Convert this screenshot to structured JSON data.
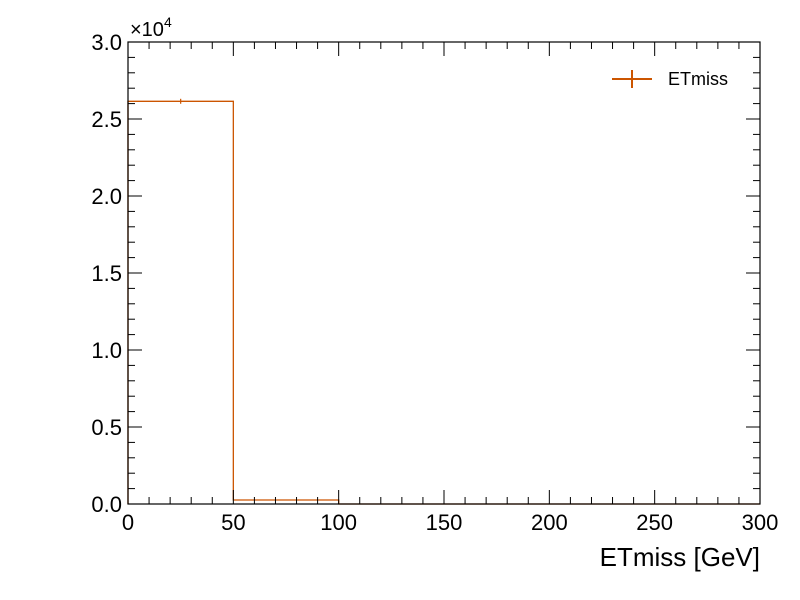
{
  "chart_data": {
    "type": "histogram",
    "xlabel": "ETmiss [GeV]",
    "ylabel": "",
    "xlim": [
      0,
      300
    ],
    "ylim": [
      0,
      30000
    ],
    "y_multiplier": "×10",
    "y_multiplier_exponent": "4",
    "x_ticks": [
      "0",
      "50",
      "100",
      "150",
      "200",
      "250",
      "300"
    ],
    "y_ticks": [
      "0.0",
      "0.5",
      "1.0",
      "1.5",
      "2.0",
      "2.5",
      "3.0"
    ],
    "grid": false,
    "legend_position": "top-right",
    "series": [
      {
        "name": "ETmiss",
        "color": "#cc5500",
        "bin_edges": [
          0,
          50,
          100,
          150,
          200,
          250,
          300
        ],
        "values": [
          26150,
          260,
          0,
          0,
          0,
          0
        ]
      }
    ]
  }
}
